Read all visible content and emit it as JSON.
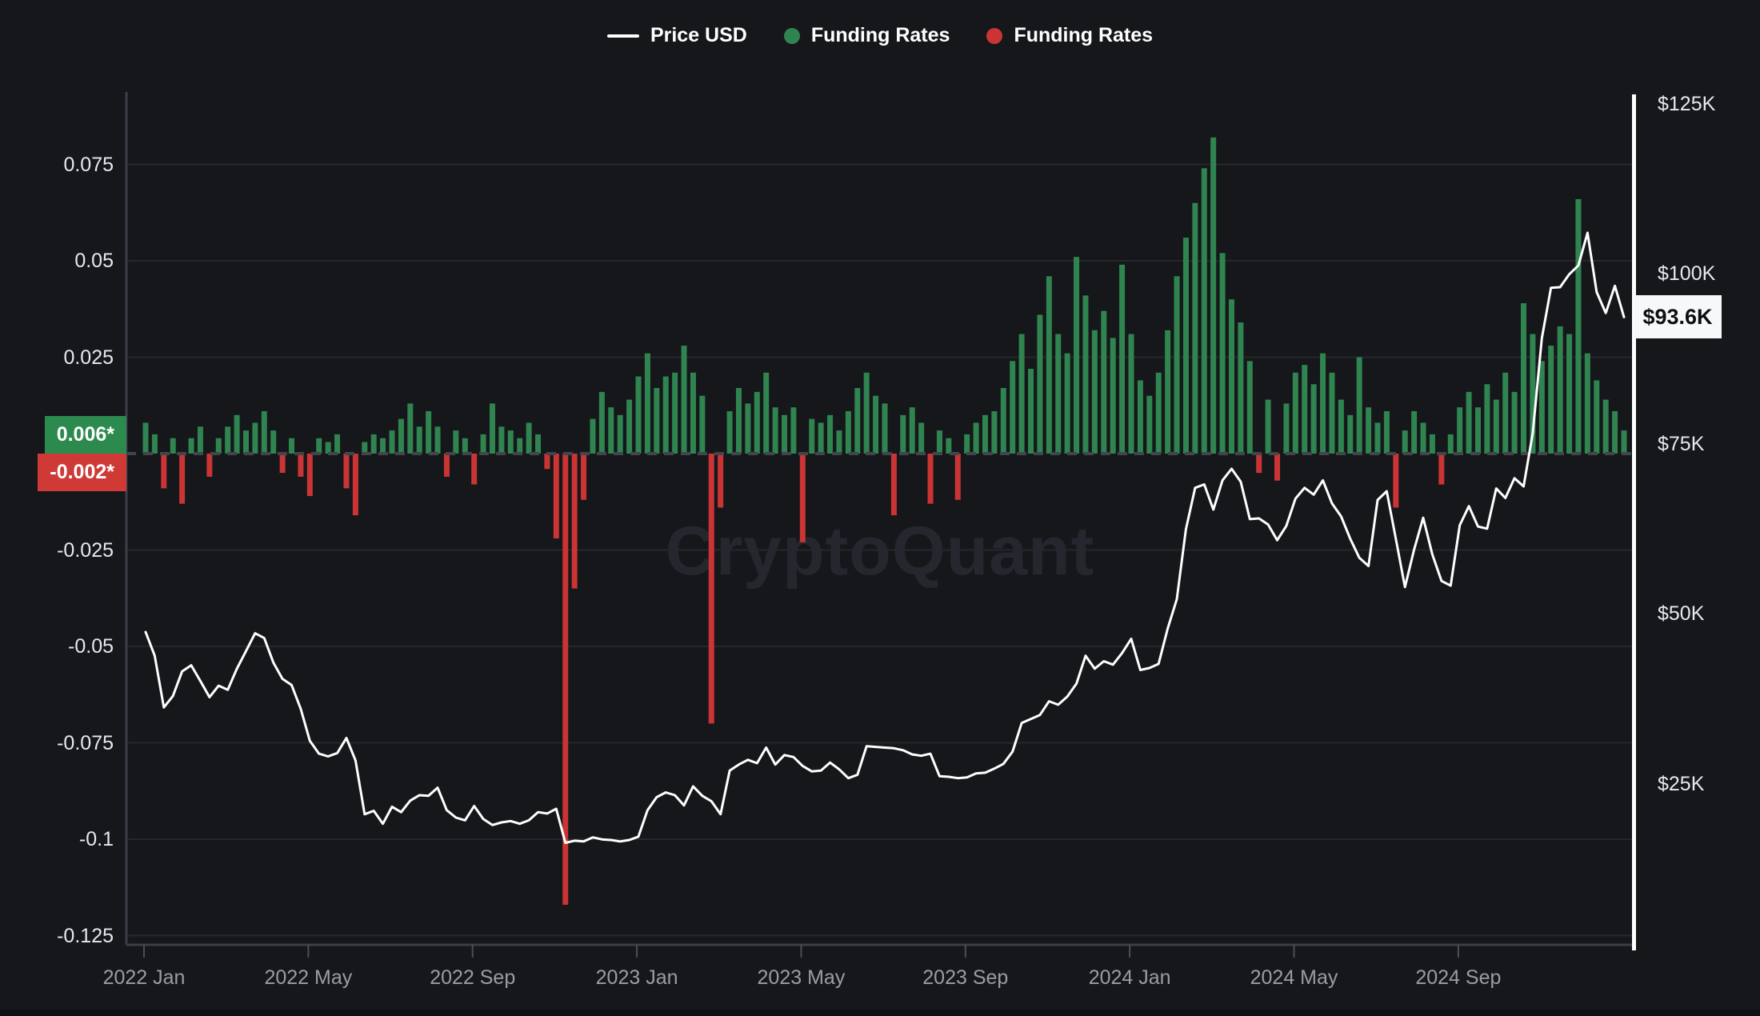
{
  "legend": {
    "price_label": "Price USD",
    "funding_pos_label": "Funding Rates",
    "funding_neg_label": "Funding Rates"
  },
  "watermark": "CryptoQuant",
  "badges": {
    "funding_last_positive": "0.006*",
    "funding_last_negative": "-0.002*",
    "price_last": "$93.6K"
  },
  "colors": {
    "background": "#16171a",
    "green_bar": "#2f8450",
    "red_bar": "#cb3434",
    "price_line": "#ffffff",
    "grid_line": "#25272d",
    "axis_line": "#3b3f47",
    "zero_dash": "#41454d",
    "x_label": "#9b9da4",
    "y_label": "#e8e9ec",
    "watermark": "#25272e",
    "badge_green_bg": "#2d8a4e",
    "badge_red_bg": "#cf3a37",
    "price_badge_bg": "#f7f8fa",
    "current_time_line": "#ffffff"
  },
  "chart_data": {
    "type": "mixed",
    "title": "",
    "legend_position": "top-center",
    "grid": "horizontal-on-funding-ticks",
    "x_range": [
      "2022-01",
      "2025-01"
    ],
    "x_ticks": [
      {
        "label": "2022 Jan",
        "month": 0
      },
      {
        "label": "2022 May",
        "month": 4
      },
      {
        "label": "2022 Sep",
        "month": 8
      },
      {
        "label": "2023 Jan",
        "month": 12
      },
      {
        "label": "2023 May",
        "month": 16
      },
      {
        "label": "2023 Sep",
        "month": 20
      },
      {
        "label": "2024 Jan",
        "month": 24
      },
      {
        "label": "2024 May",
        "month": 28
      },
      {
        "label": "2024 Sep",
        "month": 32
      }
    ],
    "funding_axis": {
      "side": "left",
      "ticks": [
        0.075,
        0.05,
        0.025,
        -0.025,
        -0.05,
        -0.075,
        -0.1,
        -0.125
      ],
      "range": [
        -0.129,
        0.094
      ],
      "last_positive": 0.006,
      "last_negative": -0.002
    },
    "price_axis": {
      "side": "right",
      "ticks": [
        {
          "label": "$125K",
          "value": 125
        },
        {
          "label": "$100K",
          "value": 100
        },
        {
          "label": "$75K",
          "value": 75
        },
        {
          "label": "$50K",
          "value": 50
        },
        {
          "label": "$25K",
          "value": 25
        }
      ],
      "range_k": [
        1,
        127
      ],
      "last_label": "$93.6K",
      "last_value_k": 93.6
    },
    "series": [
      {
        "name": "Price USD",
        "type": "line",
        "axis": "price",
        "unit": "thousand USD",
        "values": [
          47.3,
          43.8,
          36.2,
          37.9,
          41.5,
          42.4,
          40.1,
          37.7,
          39.4,
          38.8,
          41.9,
          44.5,
          47.1,
          46.4,
          42.8,
          40.4,
          39.5,
          36.0,
          31.3,
          29.4,
          29.0,
          29.5,
          31.7,
          28.4,
          20.5,
          21.0,
          19.1,
          21.6,
          20.8,
          22.5,
          23.3,
          23.2,
          24.4,
          21.1,
          20.0,
          19.6,
          21.7,
          19.8,
          18.9,
          19.3,
          19.5,
          19.1,
          19.6,
          20.8,
          20.6,
          21.3,
          16.3,
          16.6,
          16.5,
          17.1,
          16.8,
          16.7,
          16.5,
          16.7,
          17.2,
          21.1,
          23.0,
          23.7,
          23.3,
          21.8,
          24.6,
          23.2,
          22.4,
          20.5,
          26.9,
          27.8,
          28.5,
          28.0,
          30.3,
          27.8,
          29.2,
          28.9,
          27.6,
          26.8,
          26.9,
          28.1,
          27.1,
          25.8,
          26.3,
          30.5,
          30.4,
          30.3,
          30.2,
          29.9,
          29.3,
          29.1,
          29.4,
          26.1,
          26.0,
          25.8,
          25.9,
          26.5,
          26.6,
          27.2,
          27.9,
          29.7,
          33.9,
          34.5,
          35.1,
          37.1,
          36.6,
          37.8,
          39.7,
          43.8,
          41.9,
          43.0,
          42.5,
          44.2,
          46.3,
          41.7,
          42.0,
          42.6,
          47.8,
          52.1,
          62.4,
          68.5,
          69.0,
          65.3,
          69.6,
          71.3,
          69.4,
          63.9,
          64.0,
          63.1,
          60.8,
          62.9,
          66.9,
          68.5,
          67.5,
          69.6,
          66.2,
          64.3,
          61.0,
          58.2,
          57.0,
          66.7,
          68.0,
          61.0,
          53.9,
          59.4,
          64.1,
          58.7,
          54.8,
          54.1,
          63.0,
          65.8,
          62.8,
          62.5,
          68.4,
          67.0,
          69.9,
          68.7,
          76.5,
          90.5,
          97.9,
          98.0,
          99.9,
          101.2,
          106.0,
          97.3,
          94.2,
          98.2,
          93.6
        ]
      },
      {
        "name": "Funding Rates",
        "type": "bar",
        "axis": "funding",
        "values": [
          0.008,
          0.005,
          -0.009,
          0.004,
          -0.013,
          0.004,
          0.007,
          -0.006,
          0.004,
          0.007,
          0.01,
          0.006,
          0.008,
          0.011,
          0.006,
          -0.005,
          0.004,
          -0.006,
          -0.011,
          0.004,
          0.003,
          0.005,
          -0.009,
          -0.016,
          0.003,
          0.005,
          0.004,
          0.006,
          0.009,
          0.013,
          0.007,
          0.011,
          0.007,
          -0.006,
          0.006,
          0.004,
          -0.008,
          0.005,
          0.013,
          0.007,
          0.006,
          0.004,
          0.008,
          0.005,
          -0.004,
          -0.022,
          -0.117,
          -0.035,
          -0.012,
          0.009,
          0.016,
          0.012,
          0.01,
          0.014,
          0.02,
          0.026,
          0.017,
          0.02,
          0.021,
          0.028,
          0.021,
          0.015,
          -0.07,
          -0.014,
          0.011,
          0.017,
          0.013,
          0.016,
          0.021,
          0.012,
          0.01,
          0.012,
          -0.023,
          0.009,
          0.008,
          0.01,
          0.006,
          0.011,
          0.017,
          0.021,
          0.015,
          0.013,
          -0.016,
          0.01,
          0.012,
          0.008,
          -0.013,
          0.006,
          0.004,
          -0.012,
          0.005,
          0.008,
          0.01,
          0.011,
          0.017,
          0.024,
          0.031,
          0.022,
          0.036,
          0.046,
          0.031,
          0.026,
          0.051,
          0.041,
          0.032,
          0.037,
          0.03,
          0.049,
          0.031,
          0.019,
          0.015,
          0.021,
          0.032,
          0.046,
          0.056,
          0.065,
          0.074,
          0.082,
          0.052,
          0.04,
          0.034,
          0.024,
          -0.005,
          0.014,
          -0.007,
          0.013,
          0.021,
          0.023,
          0.018,
          0.026,
          0.021,
          0.014,
          0.01,
          0.025,
          0.012,
          0.008,
          0.011,
          -0.014,
          0.006,
          0.011,
          0.008,
          0.005,
          -0.008,
          0.005,
          0.012,
          0.016,
          0.012,
          0.018,
          0.014,
          0.021,
          0.016,
          0.039,
          0.031,
          0.024,
          0.028,
          0.033,
          0.031,
          0.066,
          0.026,
          0.019,
          0.014,
          0.011,
          0.006
        ]
      }
    ]
  }
}
